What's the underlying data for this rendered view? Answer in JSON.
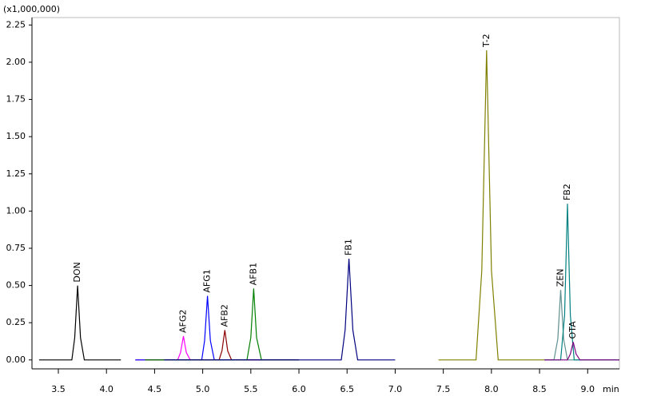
{
  "chart_data": {
    "type": "line",
    "y_unit_label": "(x1,000,000)",
    "x_label": "min",
    "xlim": [
      3.226,
      9.33
    ],
    "ylim": [
      -0.06,
      2.3
    ],
    "xticks": [
      3.5,
      {
        "value": 4,
        "label": "4.0"
      },
      4.5,
      {
        "value": 5,
        "label": "5.0"
      },
      5.5,
      {
        "value": 6,
        "label": "6.0"
      },
      6.5,
      {
        "value": 7,
        "label": "7.0"
      },
      7.5,
      {
        "value": 8,
        "label": "8.0"
      },
      8.5,
      {
        "value": 9,
        "label": "9.0"
      }
    ],
    "yticks": [
      {
        "value": 0,
        "label": "0.00"
      },
      0.25,
      {
        "value": 0.5,
        "label": "0.50"
      },
      0.75,
      {
        "value": 1,
        "label": "1.00"
      },
      1.25,
      {
        "value": 1.5,
        "label": "1.50"
      },
      1.75,
      {
        "value": 2,
        "label": "2.00"
      },
      2.25
    ],
    "series": [
      {
        "name": "DON",
        "color": "#000000",
        "x": [
          3.3,
          3.64,
          3.67,
          3.7,
          3.73,
          3.77,
          4.15
        ],
        "values": [
          0,
          0,
          0.15,
          0.5,
          0.15,
          0,
          0
        ]
      },
      {
        "name": "AFG2",
        "color": "#ff00ff",
        "x": [
          4.3,
          4.74,
          4.77,
          4.8,
          4.83,
          4.87,
          6.0
        ],
        "values": [
          0,
          0,
          0.05,
          0.16,
          0.05,
          0,
          0
        ]
      },
      {
        "name": "AFG1",
        "color": "#0000ff",
        "x": [
          4.3,
          4.99,
          5.02,
          5.05,
          5.08,
          5.12,
          6.0
        ],
        "values": [
          0,
          0,
          0.13,
          0.43,
          0.13,
          0,
          0
        ]
      },
      {
        "name": "AFB2",
        "color": "#8b0000",
        "x": [
          4.4,
          5.17,
          5.2,
          5.23,
          5.26,
          5.3,
          6.0
        ],
        "values": [
          0,
          0,
          0.06,
          0.2,
          0.06,
          0,
          0
        ]
      },
      {
        "name": "AFB1",
        "color": "#008000",
        "x": [
          4.4,
          5.46,
          5.5,
          5.53,
          5.56,
          5.61,
          6.0
        ],
        "values": [
          0,
          0,
          0.15,
          0.48,
          0.15,
          0,
          0
        ]
      },
      {
        "name": "FB1",
        "color": "#000080",
        "x": [
          4.6,
          6.44,
          6.48,
          6.52,
          6.56,
          6.61,
          7.0
        ],
        "values": [
          0,
          0,
          0.2,
          0.68,
          0.2,
          0,
          0
        ]
      },
      {
        "name": "T-2",
        "color": "#808000",
        "x": [
          7.45,
          7.84,
          7.9,
          7.95,
          8.0,
          8.07,
          8.55
        ],
        "values": [
          0,
          0,
          0.6,
          2.08,
          0.6,
          0,
          0
        ]
      },
      {
        "name": "ZEN",
        "color": "#5f8f8f",
        "x": [
          8.55,
          8.65,
          8.69,
          8.72,
          8.75,
          8.79,
          9.33
        ],
        "values": [
          0,
          0,
          0.14,
          0.47,
          0.14,
          0,
          0
        ]
      },
      {
        "name": "FB2",
        "color": "#008080",
        "x": [
          8.55,
          8.72,
          8.76,
          8.79,
          8.82,
          8.86,
          9.33
        ],
        "values": [
          0,
          0,
          0.3,
          1.05,
          0.3,
          0,
          0
        ]
      },
      {
        "name": "OTA",
        "color": "#800080",
        "x": [
          8.55,
          8.79,
          8.82,
          8.85,
          8.88,
          8.92,
          9.33
        ],
        "values": [
          0,
          0,
          0.04,
          0.12,
          0.04,
          0,
          0
        ]
      }
    ]
  }
}
